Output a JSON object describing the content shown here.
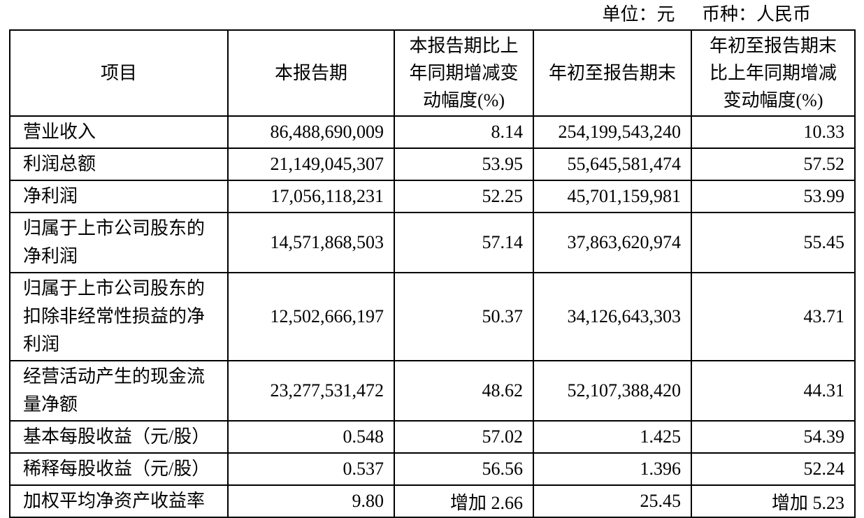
{
  "page": {
    "unit_label": "单位：元",
    "currency_label": "币种：人民币"
  },
  "table": {
    "header": {
      "item": "项目",
      "current_period": "本报告期",
      "current_change": "本报告期比上年同期增减变动幅度(%)",
      "ytd": "年初至报告期末",
      "ytd_change": "年初至报告期末比上年同期增减变动幅度(%)"
    },
    "rows": [
      {
        "item": "营业收入",
        "current_period": "86,488,690,009",
        "current_change": "8.14",
        "ytd": "254,199,543,240",
        "ytd_change": "10.33"
      },
      {
        "item": "利润总额",
        "current_period": "21,149,045,307",
        "current_change": "53.95",
        "ytd": "55,645,581,474",
        "ytd_change": "57.52"
      },
      {
        "item": "净利润",
        "current_period": "17,056,118,231",
        "current_change": "52.25",
        "ytd": "45,701,159,981",
        "ytd_change": "53.99"
      },
      {
        "item": "归属于上市公司股东的净利润",
        "current_period": "14,571,868,503",
        "current_change": "57.14",
        "ytd": "37,863,620,974",
        "ytd_change": "55.45"
      },
      {
        "item": "归属于上市公司股东的扣除非经常性损益的净利润",
        "current_period": "12,502,666,197",
        "current_change": "50.37",
        "ytd": "34,126,643,303",
        "ytd_change": "43.71"
      },
      {
        "item": "经营活动产生的现金流量净额",
        "current_period": "23,277,531,472",
        "current_change": "48.62",
        "ytd": "52,107,388,420",
        "ytd_change": "44.31"
      },
      {
        "item": "基本每股收益（元/股）",
        "current_period": "0.548",
        "current_change": "57.02",
        "ytd": "1.425",
        "ytd_change": "54.39"
      },
      {
        "item": "稀释每股收益（元/股）",
        "current_period": "0.537",
        "current_change": "56.56",
        "ytd": "1.396",
        "ytd_change": "52.24"
      },
      {
        "item": "加权平均净资产收益率",
        "current_period": "9.80",
        "current_change": "增加 2.66",
        "ytd": "25.45",
        "ytd_change": "增加 5.23"
      }
    ]
  }
}
